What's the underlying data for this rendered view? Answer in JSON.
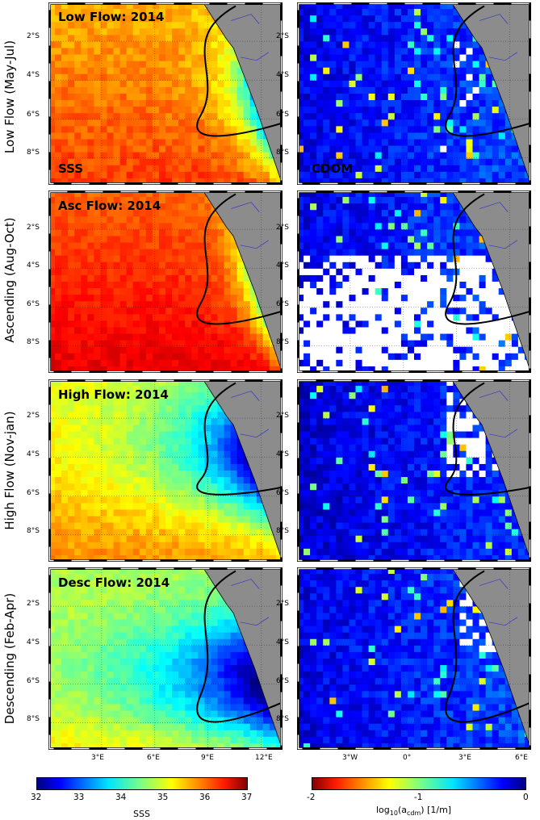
{
  "rows": [
    {
      "label": "Low Flow (May-Jul)",
      "title": "Low Flow: 2014"
    },
    {
      "label": "Ascending (Aug-Oct)",
      "title": "Asc Flow: 2014"
    },
    {
      "label": "High Flow (Nov-jan)",
      "title": "High Flow: 2014"
    },
    {
      "label": "Descending (Feb-Apr)",
      "title": "Desc Flow: 2014"
    }
  ],
  "left_tag": "SSS",
  "right_tag": "CDOM",
  "lat_ticks": [
    "2°S",
    "4°S",
    "6°S",
    "8°S"
  ],
  "lon_ticks_left": [
    "3°E",
    "6°E",
    "9°E",
    "12°E"
  ],
  "lon_ticks_right": [
    "3°W",
    "0°",
    "3°E",
    "6°E"
  ],
  "colorbar_sss": {
    "ticks": [
      "32",
      "33",
      "34",
      "35",
      "36",
      "37"
    ],
    "label": "SSS",
    "range": [
      32,
      37
    ]
  },
  "colorbar_cdom": {
    "ticks": [
      "-2",
      "-1",
      "0"
    ],
    "label_main": "log",
    "label_sub1": "10",
    "label_mid": "(a",
    "label_sub2": "cdm",
    "label_end": ") [1/m]",
    "range": [
      -2,
      0
    ]
  },
  "colors": {
    "land": "#8c8c8c",
    "coast_river": "#3333cc",
    "contour": "#000000",
    "missing": "#ffffff"
  }
}
